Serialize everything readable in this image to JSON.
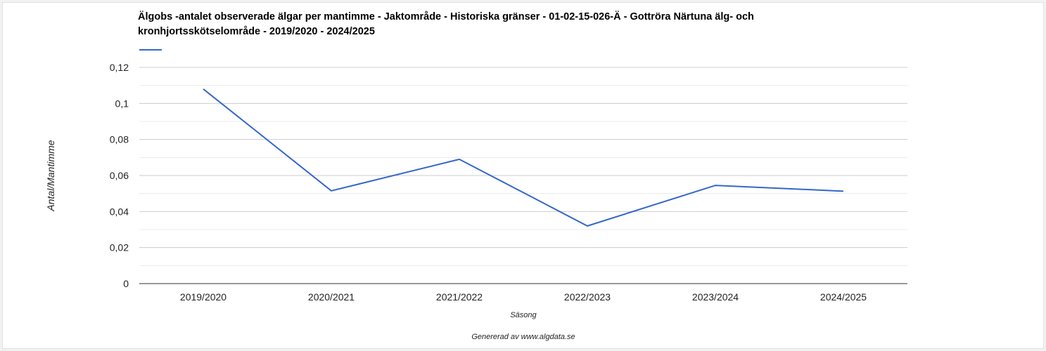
{
  "chart_data": {
    "type": "line",
    "title": "Älgobs -antalet observerade älgar per mantimme - Jaktområde - Historiska gränser - 01-02-15-026-Ä - Gottröra Närtuna älg- och kronhjortsskötselområde - 2019/2020 - 2024/2025",
    "xlabel": "Säsong",
    "ylabel": "Antal/Mantimme",
    "categories": [
      "2019/2020",
      "2020/2021",
      "2021/2022",
      "2022/2023",
      "2023/2024",
      "2024/2025"
    ],
    "series": [
      {
        "values": [
          0.108,
          0.0515,
          0.069,
          0.032,
          0.0545,
          0.0513
        ],
        "color": "#3366cc"
      }
    ],
    "ylim": [
      0,
      0.12
    ],
    "yticks": [
      0,
      0.02,
      0.04,
      0.06,
      0.08,
      0.1,
      0.12
    ],
    "ytick_labels": [
      "0",
      "0,02",
      "0,04",
      "0,06",
      "0,08",
      "0,1",
      "0,12"
    ],
    "grid": true,
    "legend": "top-left"
  },
  "footer": "Genererad av www.algdata.se"
}
